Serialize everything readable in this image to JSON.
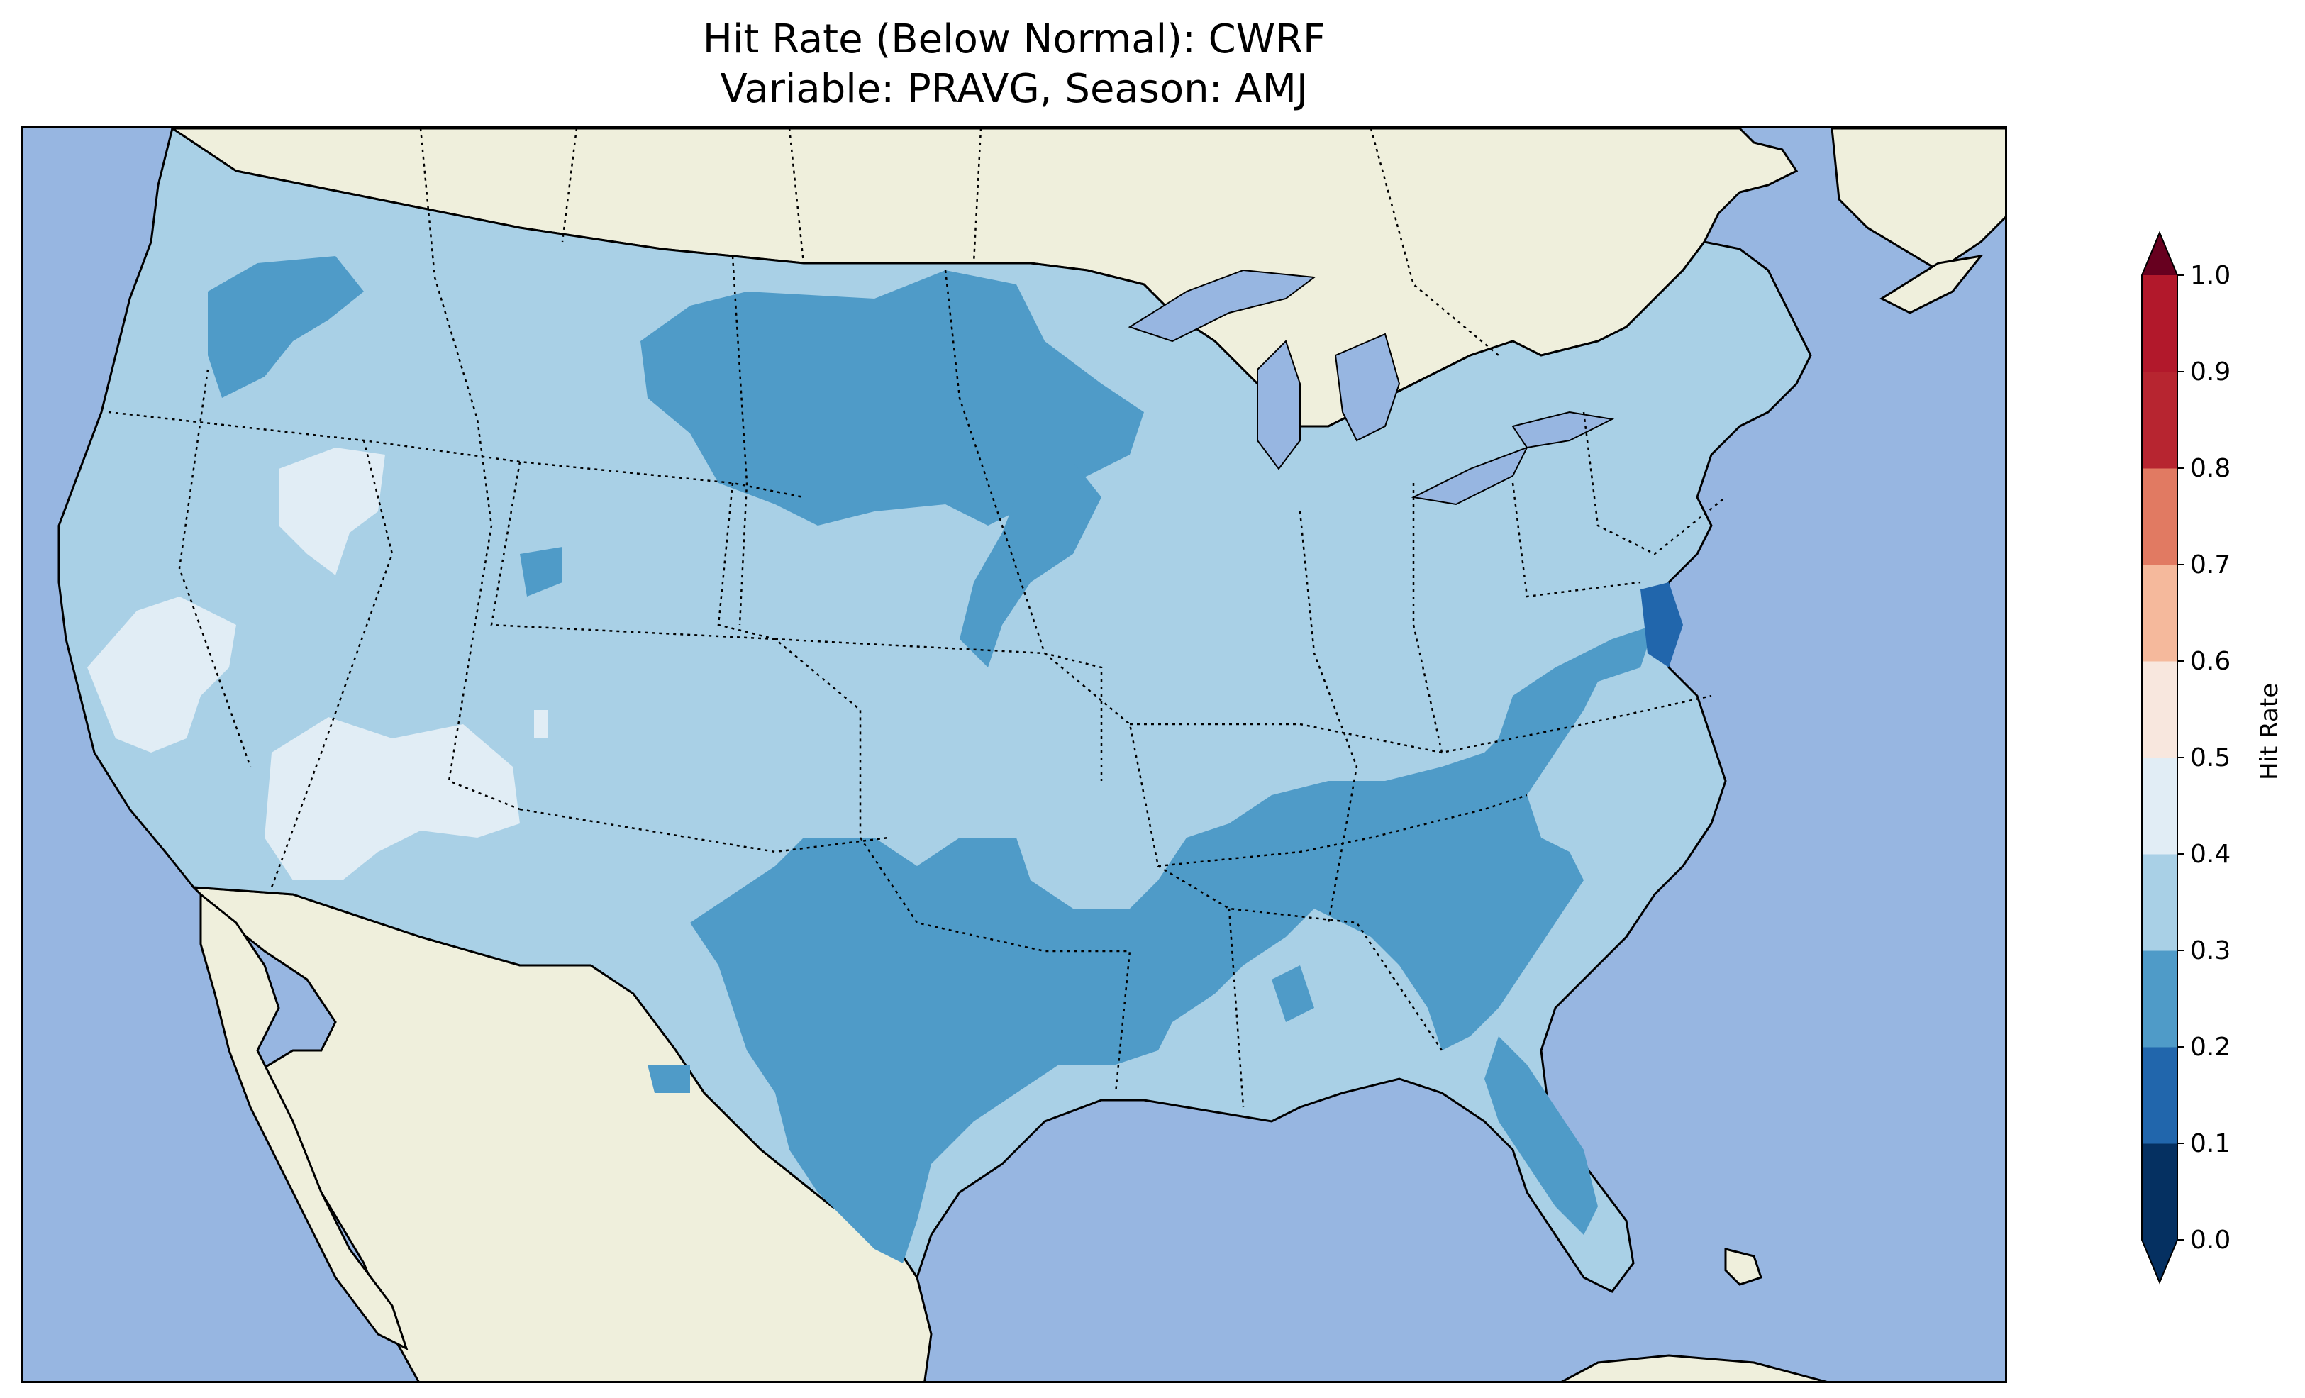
{
  "title_line1": "Hit Rate (Below Normal): CWRF",
  "title_line2": "Variable: PRAVG, Season: AMJ",
  "colors": {
    "ocean": "#97b6e1",
    "land": "#efefdc",
    "band_0_0": "#053061",
    "band_0_1": "#2166ac",
    "band_0_2": "#4393c3",
    "band_0_3": "#92c5de",
    "band_0_4": "#d1e5f0",
    "band_0_5": "#f7f7f7",
    "band_0_6": "#fddbc7",
    "band_0_7": "#f4a582",
    "band_0_8": "#d6604d",
    "band_0_9": "#b2182b",
    "band_over": "#67001f",
    "band_under": "#053061"
  },
  "colorbar": {
    "label": "Hit Rate",
    "ticks": [
      "0.0",
      "0.1",
      "0.2",
      "0.3",
      "0.4",
      "0.5",
      "0.6",
      "0.7",
      "0.8",
      "0.9",
      "1.0"
    ],
    "band_colors": [
      "#053061",
      "#2166ac",
      "#4f9bc8",
      "#a9d0e6",
      "#e1edf5",
      "#f8e7de",
      "#f5b99c",
      "#e17a62",
      "#b72530",
      "#b2182b"
    ],
    "extend_under_color": "#053061",
    "extend_over_color": "#67001f",
    "range": [
      0.0,
      1.0
    ]
  },
  "map": {
    "region": "Contiguous United States",
    "dominant_value_band": "0.3-0.4",
    "regions_0_2_to_0_3": [
      "Pacific Northwest",
      "Northern Plains",
      "Texas",
      "Arkansas",
      "Tennessee",
      "Kentucky",
      "Georgia",
      "Florida",
      "Virginia"
    ],
    "regions_0_4_to_0_5": [
      "Central California",
      "Southern Nevada",
      "Arizona",
      "Northern Nevada"
    ]
  }
}
